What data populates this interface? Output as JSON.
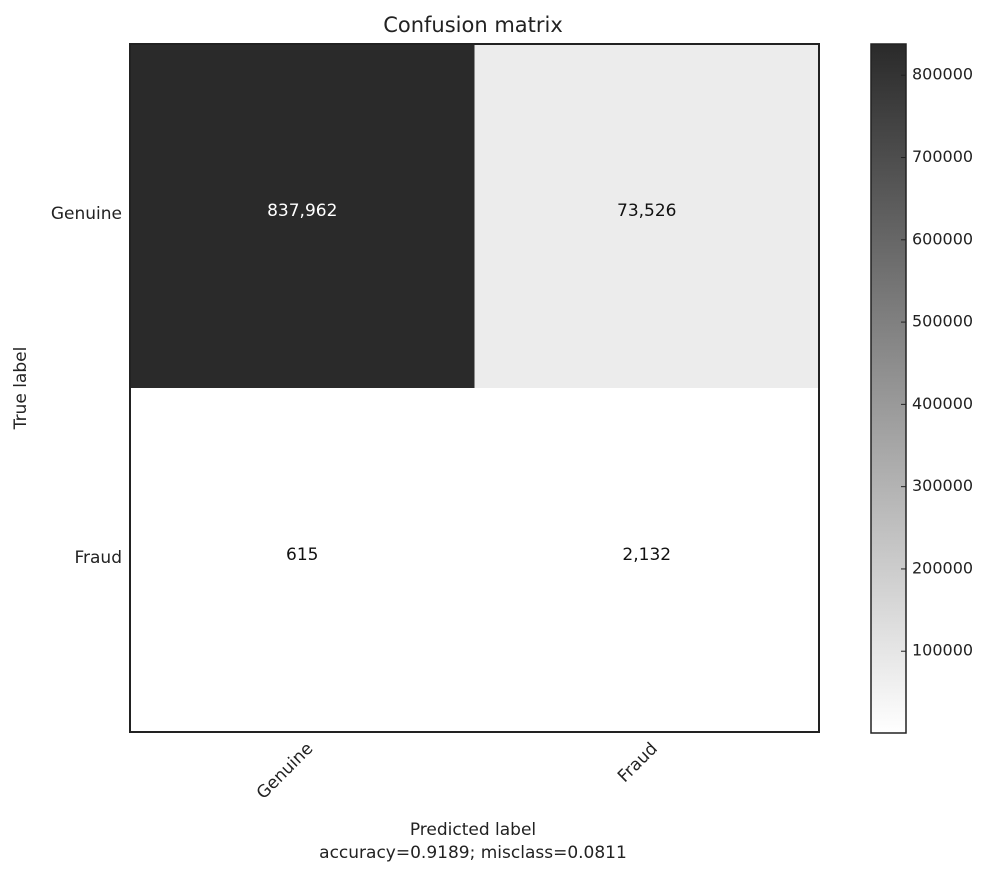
{
  "chart_data": {
    "type": "heatmap",
    "title": "Confusion matrix",
    "xlabel": "Predicted label",
    "xlabel_sub": "accuracy=0.9189; misclass=0.0811",
    "ylabel": "True label",
    "x_categories": [
      "Genuine",
      "Fraud"
    ],
    "y_categories": [
      "Genuine",
      "Fraud"
    ],
    "values": [
      [
        837962,
        73526
      ],
      [
        615,
        2132
      ]
    ],
    "cell_labels": [
      [
        "837,962",
        "73,526"
      ],
      [
        "615",
        "2,132"
      ]
    ],
    "colormap": "Greys",
    "color_low": "#ffffff",
    "color_high": "#2a2a2a",
    "colorbar": {
      "ticks": [
        100000,
        200000,
        300000,
        400000,
        500000,
        600000,
        700000,
        800000
      ],
      "tick_labels": [
        "100000",
        "200000",
        "300000",
        "400000",
        "500000",
        "600000",
        "700000",
        "800000"
      ],
      "range": [
        615,
        837962
      ]
    }
  }
}
